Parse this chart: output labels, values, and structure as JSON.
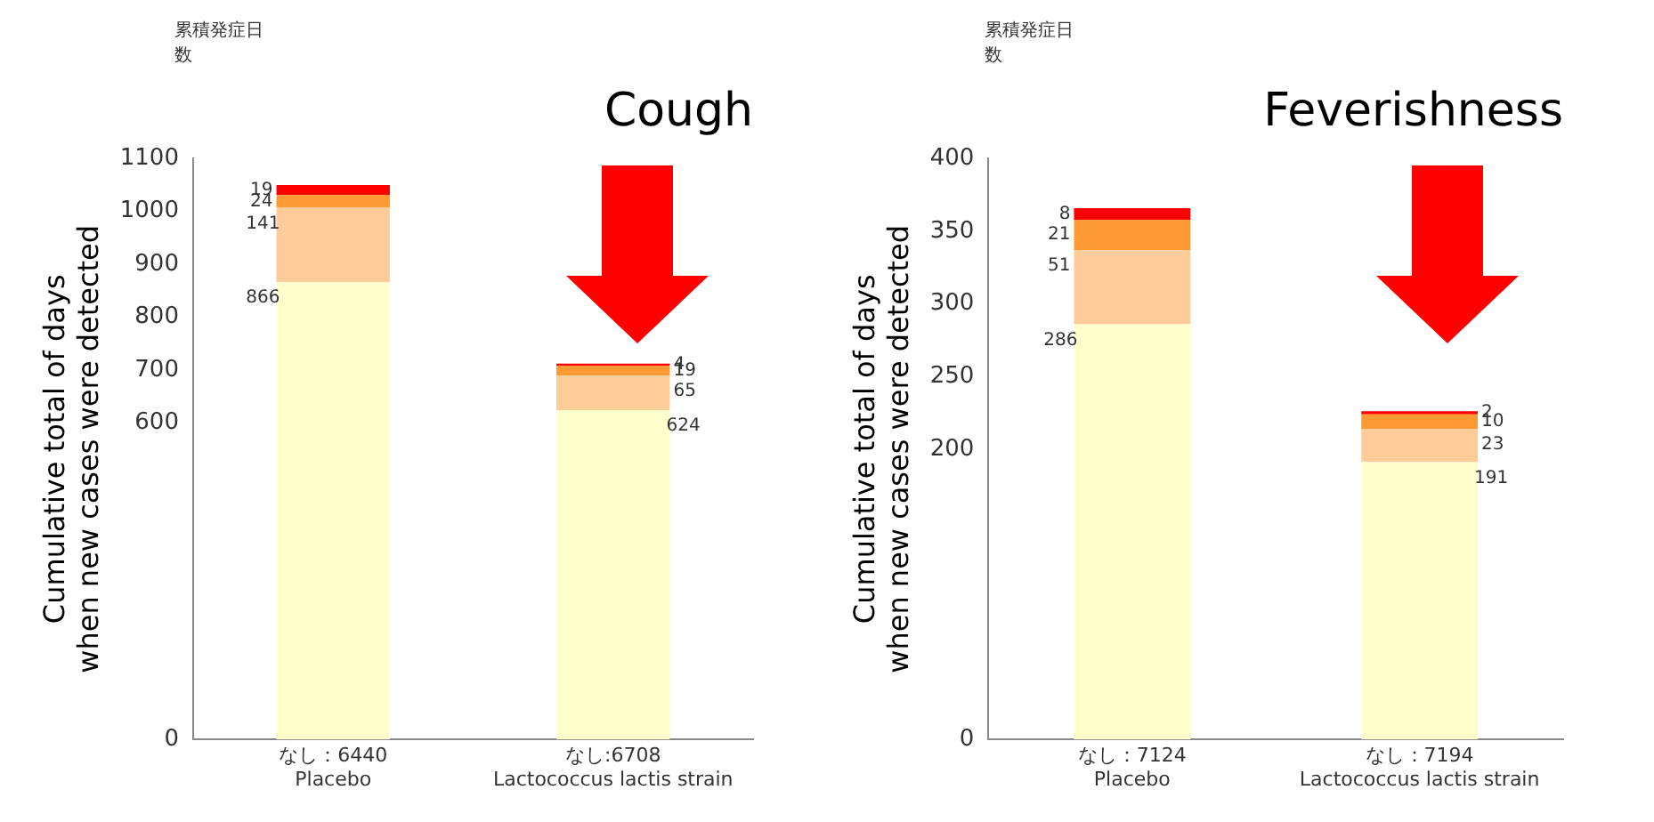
{
  "chart_data": [
    {
      "type": "bar",
      "title": "Cough",
      "ylabel": "Cumulative total of days when new cases were detected",
      "annotations": [
        "累積発症日数"
      ],
      "categories": [
        "なし：6440\nPlacebo",
        "なし:6708\nLactococcus lactis strain"
      ],
      "stacked": true,
      "ylim": [
        0,
        1100
      ],
      "yticks": [
        0,
        600,
        700,
        800,
        900,
        1000,
        1100
      ],
      "grid": false,
      "legend": false,
      "data_labels": true,
      "series": [
        {
          "color": "#ffffcc",
          "values": [
            866,
            624
          ]
        },
        {
          "color": "#ffcc99",
          "values": [
            141,
            65
          ]
        },
        {
          "color": "#ff9933",
          "values": [
            24,
            19
          ]
        },
        {
          "color": "#ff0000",
          "values": [
            19,
            4
          ]
        }
      ]
    },
    {
      "type": "bar",
      "title": "Feverishness",
      "ylabel": "Cumulative total of days when new cases were detected",
      "annotations": [
        "累積発症日数"
      ],
      "categories": [
        "なし：7124\nPlacebo",
        "なし：7194\nLactococcus lactis strain"
      ],
      "stacked": true,
      "ylim": [
        0,
        400
      ],
      "yticks": [
        0,
        200,
        250,
        300,
        350,
        400
      ],
      "grid": false,
      "legend": false,
      "data_labels": true,
      "series": [
        {
          "color": "#ffffcc",
          "values": [
            286,
            191
          ]
        },
        {
          "color": "#ffcc99",
          "values": [
            51,
            23
          ]
        },
        {
          "color": "#ff9933",
          "values": [
            21,
            10
          ]
        },
        {
          "color": "#ff0000",
          "values": [
            8,
            2
          ]
        }
      ]
    }
  ]
}
